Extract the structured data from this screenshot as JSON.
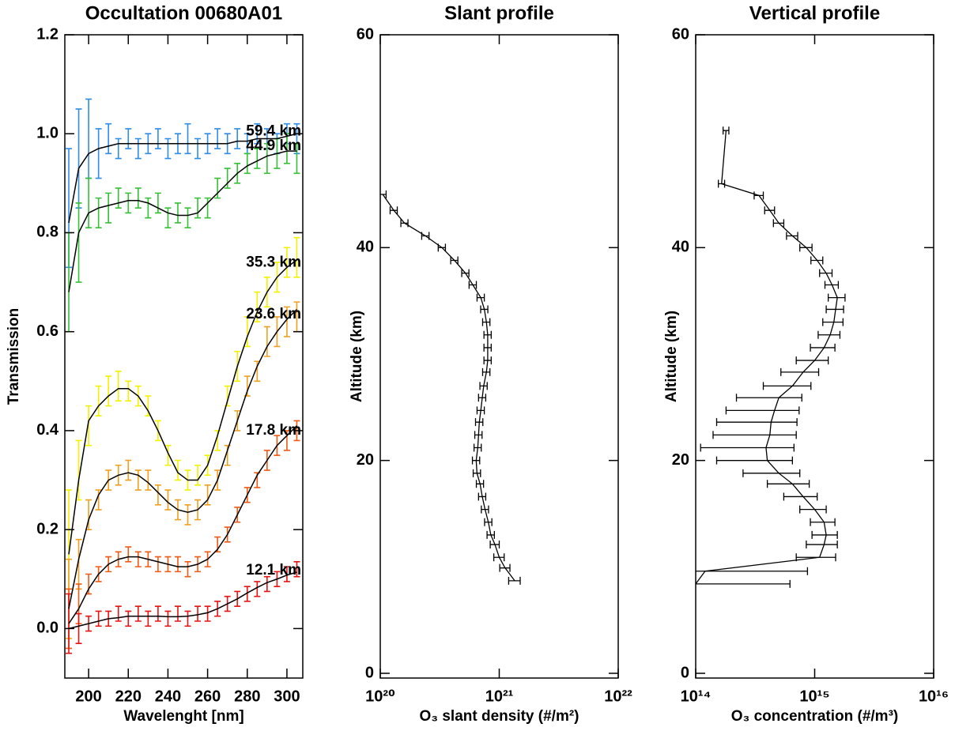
{
  "chart_data": [
    {
      "type": "line",
      "title": "Occultation 00680A01",
      "xlabel": "Wavelenght [nm]",
      "ylabel": "Transmission",
      "xlim": [
        188,
        308
      ],
      "ylim": [
        -0.1,
        1.2
      ],
      "xticks": [
        200,
        220,
        240,
        260,
        280,
        300
      ],
      "yticks": [
        {
          "value": 0,
          "label": "0.0"
        },
        0.2,
        0.4,
        0.6,
        0.8,
        {
          "value": 1,
          "label": "1.0"
        },
        1.2
      ],
      "fit_color": "#000000",
      "x": [
        190,
        195,
        200,
        205,
        210,
        215,
        220,
        225,
        230,
        235,
        240,
        245,
        250,
        255,
        260,
        265,
        270,
        275,
        280,
        285,
        290,
        295,
        300,
        305
      ],
      "series": [
        {
          "name": "59.4 km",
          "color": "#2f8ce8",
          "values": [
            0.85,
            0.95,
            0.99,
            0.96,
            0.99,
            0.97,
            0.99,
            0.97,
            0.98,
            0.99,
            0.97,
            0.98,
            0.99,
            0.97,
            0.98,
            0.99,
            0.98,
            0.99,
            0.98,
            1.0,
            0.99,
            0.98,
            1.0,
            0.99
          ],
          "errors": [
            0.12,
            0.1,
            0.08,
            0.05,
            0.03,
            0.02,
            0.02,
            0.02,
            0.02,
            0.02,
            0.02,
            0.02,
            0.03,
            0.02,
            0.02,
            0.02,
            0.02,
            0.02,
            0.02,
            0.02,
            0.02,
            0.02,
            0.02,
            0.03
          ],
          "fit": [
            0.82,
            0.93,
            0.96,
            0.97,
            0.975,
            0.98,
            0.98,
            0.98,
            0.98,
            0.98,
            0.98,
            0.98,
            0.98,
            0.98,
            0.98,
            0.98,
            0.98,
            0.985,
            0.985,
            0.99,
            0.99,
            0.99,
            0.995,
            1.0
          ]
        },
        {
          "name": "44.9 km",
          "color": "#35c035",
          "values": [
            0.7,
            0.78,
            0.86,
            0.84,
            0.85,
            0.87,
            0.86,
            0.87,
            0.85,
            0.86,
            0.83,
            0.84,
            0.83,
            0.85,
            0.85,
            0.89,
            0.91,
            0.92,
            0.94,
            0.95,
            0.95,
            0.96,
            0.97,
            0.95
          ],
          "errors": [
            0.1,
            0.08,
            0.05,
            0.03,
            0.03,
            0.02,
            0.02,
            0.02,
            0.02,
            0.02,
            0.02,
            0.02,
            0.02,
            0.02,
            0.02,
            0.02,
            0.02,
            0.02,
            0.02,
            0.02,
            0.03,
            0.03,
            0.03,
            0.03
          ],
          "fit": [
            0.68,
            0.8,
            0.84,
            0.85,
            0.855,
            0.86,
            0.865,
            0.865,
            0.86,
            0.85,
            0.84,
            0.835,
            0.835,
            0.84,
            0.86,
            0.88,
            0.9,
            0.92,
            0.935,
            0.945,
            0.955,
            0.96,
            0.965,
            0.965
          ]
        },
        {
          "name": "35.3 km",
          "color": "#f2f200",
          "values": [
            0.18,
            0.32,
            0.41,
            0.46,
            0.48,
            0.49,
            0.48,
            0.47,
            0.45,
            0.4,
            0.35,
            0.32,
            0.3,
            0.31,
            0.33,
            0.38,
            0.47,
            0.53,
            0.6,
            0.65,
            0.68,
            0.71,
            0.74,
            0.75
          ],
          "errors": [
            0.1,
            0.06,
            0.04,
            0.03,
            0.03,
            0.03,
            0.02,
            0.02,
            0.02,
            0.02,
            0.02,
            0.02,
            0.02,
            0.02,
            0.02,
            0.02,
            0.02,
            0.03,
            0.03,
            0.03,
            0.03,
            0.03,
            0.03,
            0.04
          ],
          "fit": [
            0.15,
            0.3,
            0.42,
            0.45,
            0.47,
            0.485,
            0.485,
            0.47,
            0.44,
            0.4,
            0.355,
            0.315,
            0.3,
            0.3,
            0.33,
            0.39,
            0.46,
            0.53,
            0.59,
            0.64,
            0.68,
            0.71,
            0.73,
            0.745
          ]
        },
        {
          "name": "23.6 km",
          "color": "#f0a020",
          "values": [
            0.06,
            0.13,
            0.23,
            0.26,
            0.3,
            0.31,
            0.32,
            0.3,
            0.3,
            0.27,
            0.26,
            0.24,
            0.23,
            0.24,
            0.27,
            0.3,
            0.35,
            0.42,
            0.49,
            0.52,
            0.58,
            0.6,
            0.62,
            0.63
          ],
          "errors": [
            0.08,
            0.05,
            0.03,
            0.02,
            0.02,
            0.02,
            0.02,
            0.02,
            0.02,
            0.02,
            0.02,
            0.02,
            0.02,
            0.02,
            0.02,
            0.02,
            0.02,
            0.02,
            0.02,
            0.02,
            0.03,
            0.03,
            0.03,
            0.03
          ],
          "fit": [
            0.04,
            0.14,
            0.22,
            0.27,
            0.3,
            0.31,
            0.315,
            0.31,
            0.295,
            0.275,
            0.255,
            0.24,
            0.235,
            0.24,
            0.26,
            0.3,
            0.36,
            0.42,
            0.48,
            0.53,
            0.57,
            0.6,
            0.625,
            0.645
          ]
        },
        {
          "name": "17.8 km",
          "color": "#f05a14",
          "values": [
            0.02,
            0.05,
            0.09,
            0.11,
            0.13,
            0.14,
            0.15,
            0.14,
            0.14,
            0.13,
            0.13,
            0.13,
            0.12,
            0.13,
            0.14,
            0.17,
            0.19,
            0.23,
            0.27,
            0.3,
            0.34,
            0.37,
            0.38,
            0.4
          ],
          "errors": [
            0.06,
            0.04,
            0.02,
            0.015,
            0.015,
            0.015,
            0.015,
            0.015,
            0.015,
            0.015,
            0.015,
            0.015,
            0.015,
            0.015,
            0.015,
            0.015,
            0.015,
            0.015,
            0.015,
            0.015,
            0.02,
            0.02,
            0.02,
            0.02
          ],
          "fit": [
            0.01,
            0.04,
            0.08,
            0.11,
            0.13,
            0.14,
            0.145,
            0.145,
            0.14,
            0.135,
            0.13,
            0.125,
            0.125,
            0.13,
            0.14,
            0.16,
            0.19,
            0.23,
            0.27,
            0.31,
            0.34,
            0.37,
            0.39,
            0.41
          ]
        },
        {
          "name": "12.1 km",
          "color": "#e81414",
          "values": [
            0.01,
            0,
            0.01,
            0.02,
            0.02,
            0.03,
            0.02,
            0.03,
            0.02,
            0.03,
            0.02,
            0.03,
            0.02,
            0.03,
            0.03,
            0.04,
            0.05,
            0.06,
            0.07,
            0.08,
            0.09,
            0.1,
            0.11,
            0.12
          ],
          "errors": [
            0.06,
            0.03,
            0.015,
            0.015,
            0.015,
            0.015,
            0.015,
            0.015,
            0.015,
            0.015,
            0.015,
            0.015,
            0.015,
            0.015,
            0.015,
            0.015,
            0.015,
            0.015,
            0.015,
            0.015,
            0.015,
            0.015,
            0.015,
            0.015
          ],
          "fit": [
            0,
            0.005,
            0.01,
            0.015,
            0.02,
            0.022,
            0.025,
            0.025,
            0.025,
            0.025,
            0.024,
            0.024,
            0.025,
            0.028,
            0.032,
            0.04,
            0.05,
            0.06,
            0.072,
            0.083,
            0.093,
            0.1,
            0.108,
            0.114
          ]
        }
      ]
    },
    {
      "type": "profile",
      "title": "Slant profile",
      "xlabel": "O₃ slant density (#/m²)",
      "ylabel": "Altitude (km)",
      "xscale": "log",
      "xlim": [
        1e+20,
        1e+22
      ],
      "ylim": [
        0,
        60
      ],
      "xticks": [
        {
          "value": 1e+20,
          "label": "10²⁰"
        },
        {
          "value": 1e+21,
          "label": "10²¹"
        },
        {
          "value": 1e+22,
          "label": "10²²"
        }
      ],
      "yticks": [
        0,
        20,
        40,
        60
      ],
      "color": "#000000",
      "altitudes": [
        45,
        43.5,
        42.3,
        41.1,
        40,
        38.8,
        37.6,
        36.5,
        35.3,
        34.2,
        33,
        31.8,
        30.6,
        29.4,
        28.3,
        27,
        25.9,
        24.7,
        23.6,
        22.4,
        21.2,
        20,
        18.8,
        17.8,
        16.6,
        15.4,
        14.2,
        13,
        12.1,
        10.9,
        9.9,
        8.7
      ],
      "values": [
        1.05e+20,
        1.3e+20,
        1.6e+20,
        2.4e+20,
        3.3e+20,
        4.2e+20,
        5.2e+20,
        6e+20,
        7e+20,
        7.5e+20,
        7.8e+20,
        8e+20,
        8e+20,
        8e+20,
        7.8e+20,
        7.4e+20,
        7.2e+20,
        7e+20,
        6.8e+20,
        6.7e+20,
        6.6e+20,
        6.4e+20,
        6.5e+20,
        6.9e+20,
        7.2e+20,
        7.6e+20,
        8.1e+20,
        8.5e+20,
        9.2e+20,
        1e+21,
        1.12e+21,
        1.35e+21
      ],
      "errors": [
        7e+18,
        9e+18,
        1.1e+19,
        1.7e+19,
        2.3e+19,
        2.9e+19,
        3.6e+19,
        4.2e+19,
        4.9e+19,
        5.2e+19,
        5.5e+19,
        5.6e+19,
        5.6e+19,
        5.6e+19,
        5.5e+19,
        5.2e+19,
        5e+19,
        4.9e+19,
        4.8e+19,
        4.7e+19,
        4.6e+19,
        4.5e+19,
        4.6e+19,
        4.8e+19,
        5e+19,
        5.3e+19,
        5.7e+19,
        6e+19,
        8e+19,
        1e+20,
        1.1e+20,
        1.5e+20
      ]
    },
    {
      "type": "profile",
      "title": "Vertical profile",
      "xlabel": "O₃ concentration (#/m³)",
      "ylabel": "Altitude (km)",
      "xscale": "log",
      "xlim": [
        100000000000000.0,
        1e+16
      ],
      "ylim": [
        0,
        60
      ],
      "xticks": [
        {
          "value": 100000000000000.0,
          "label": "10¹⁴"
        },
        {
          "value": 1000000000000000.0,
          "label": "10¹⁵"
        },
        {
          "value": 1e+16,
          "label": "10¹⁶"
        }
      ],
      "yticks": [
        0,
        20,
        40,
        60
      ],
      "color": "#000000",
      "altitudes": [
        51,
        46,
        44.9,
        43.5,
        42.3,
        41.1,
        40,
        38.8,
        37.6,
        36.5,
        35.3,
        34.2,
        33,
        31.8,
        30.6,
        29.4,
        28.3,
        27,
        25.9,
        24.7,
        23.6,
        22.4,
        21.2,
        20,
        18.8,
        17.8,
        16.6,
        15.4,
        14.2,
        13,
        12.1,
        10.9,
        9.6,
        8.4
      ],
      "values": [
        180000000000000.0,
        165000000000000.0,
        340000000000000.0,
        420000000000000.0,
        500000000000000.0,
        650000000000000.0,
        850000000000000.0,
        1050000000000000.0,
        1250000000000000.0,
        1400000000000000.0,
        1550000000000000.0,
        1500000000000000.0,
        1450000000000000.0,
        1350000000000000.0,
        1200000000000000.0,
        1000000000000000.0,
        800000000000000.0,
        650000000000000.0,
        500000000000000.0,
        460000000000000.0,
        430000000000000.0,
        420000000000000.0,
        390000000000000.0,
        400000000000000.0,
        500000000000000.0,
        650000000000000.0,
        800000000000000.0,
        1000000000000000.0,
        1200000000000000.0,
        1250000000000000.0,
        1200000000000000.0,
        1100000000000000.0,
        120000000000000.0,
        100000000000000.0
      ],
      "errors": [
        10000000000000.0,
        10000000000000.0,
        30000000000000.0,
        40000000000000.0,
        50000000000000.0,
        70000000000000.0,
        100000000000000.0,
        120000000000000.0,
        150000000000000.0,
        180000000000000.0,
        250000000000000.0,
        250000000000000.0,
        280000000000000.0,
        280000000000000.0,
        280000000000000.0,
        300000000000000.0,
        280000000000000.0,
        280000000000000.0,
        280000000000000.0,
        280000000000000.0,
        280000000000000.0,
        280000000000000.0,
        280000000000000.0,
        250000000000000.0,
        250000000000000.0,
        250000000000000.0,
        250000000000000.0,
        250000000000000.0,
        280000000000000.0,
        300000000000000.0,
        350000000000000.0,
        400000000000000.0,
        750000000000000.0,
        520000000000000.0
      ]
    }
  ]
}
